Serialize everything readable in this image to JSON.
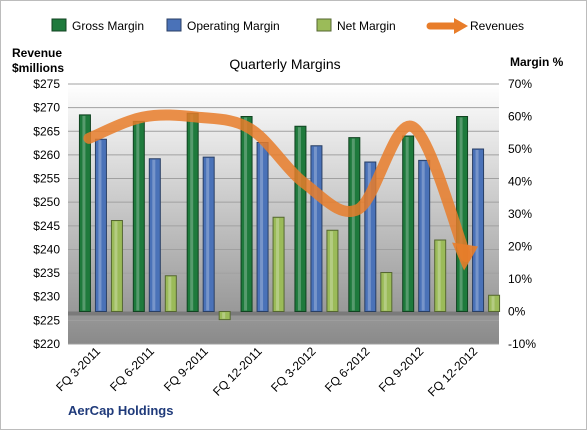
{
  "chart_data": {
    "type": "bar",
    "title": "Quarterly Margins",
    "source_label": "AerCap Holdings",
    "categories": [
      "FQ 3-2011",
      "FQ 6-2011",
      "FQ 9-2011",
      "FQ 12-2011",
      "FQ 3-2012",
      "FQ 6-2012",
      "FQ 9-2012",
      "FQ 12-2012"
    ],
    "bar_series": [
      {
        "name": "Gross Margin",
        "color": "#1e7a3c",
        "values": [
          60.5,
          58.5,
          61.0,
          60.0,
          57.0,
          53.5,
          54.0,
          60.0
        ]
      },
      {
        "name": "Operating Margin",
        "color": "#4a72b8",
        "values": [
          53.0,
          47.0,
          47.5,
          52.0,
          51.0,
          46.0,
          46.5,
          50.0
        ]
      },
      {
        "name": "Net Margin",
        "color": "#9bbb59",
        "values": [
          28.0,
          11.0,
          -2.5,
          29.0,
          25.0,
          12.0,
          22.0,
          5.0
        ]
      }
    ],
    "line_series": {
      "name": "Revenues",
      "color": "#e87d2a",
      "values": [
        263.5,
        268.0,
        268.0,
        265.5,
        254.0,
        248.5,
        266.0,
        238.5
      ]
    },
    "left_axis": {
      "label": "Revenue $millions",
      "range": [
        220,
        275
      ],
      "ticks": [
        "$220",
        "$225",
        "$230",
        "$235",
        "$240",
        "$245",
        "$250",
        "$255",
        "$260",
        "$265",
        "$270",
        "$275"
      ]
    },
    "right_axis": {
      "label": "Margin %",
      "range": [
        -10,
        70
      ],
      "ticks": [
        "-10%",
        "0%",
        "10%",
        "20%",
        "30%",
        "40%",
        "50%",
        "60%",
        "70%"
      ]
    },
    "legend_position": "top",
    "grid": true
  }
}
